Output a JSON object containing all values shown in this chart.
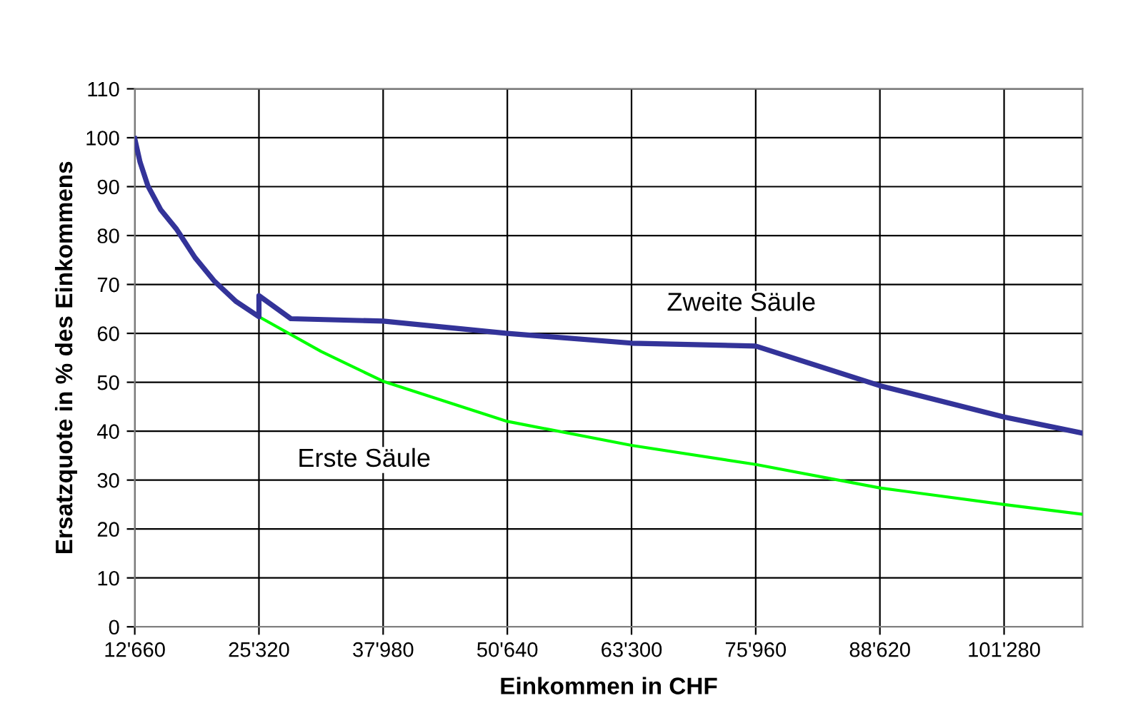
{
  "chart_data": {
    "type": "line",
    "xlabel": "Einkommen in CHF",
    "ylabel": "Ersatzquote in % des Einkommens",
    "xlim": [
      12660,
      109280
    ],
    "ylim": [
      0,
      110
    ],
    "xticks": [
      {
        "value": 12660,
        "label": "12'660"
      },
      {
        "value": 25320,
        "label": "25'320"
      },
      {
        "value": 37980,
        "label": "37'980"
      },
      {
        "value": 50640,
        "label": "50'640"
      },
      {
        "value": 63300,
        "label": "63'300"
      },
      {
        "value": 75960,
        "label": "75'960"
      },
      {
        "value": 88620,
        "label": "88'620"
      },
      {
        "value": 101280,
        "label": "101'280"
      }
    ],
    "yticks": [
      0,
      10,
      20,
      30,
      40,
      50,
      60,
      70,
      80,
      90,
      100,
      110
    ],
    "grid": true,
    "legend": false,
    "marker": "none",
    "line_style": "solid",
    "series": [
      {
        "name": "Zweite Säule",
        "color": "#333399",
        "x": [
          12660,
          13200,
          14010,
          15300,
          16920,
          18800,
          20810,
          23000,
          25320,
          25320,
          28570,
          37980,
          50640,
          63300,
          75960,
          88620,
          101280,
          109280
        ],
        "values": [
          99.8,
          95,
          90.1,
          85.3,
          81.3,
          75.5,
          70.6,
          66.5,
          63.4,
          67.7,
          63,
          62.5,
          60,
          58,
          57.4,
          49.3,
          42.9,
          39.6
        ]
      },
      {
        "name": "Erste Säule",
        "color": "#00ff00",
        "x": [
          25320,
          31650,
          37980,
          50640,
          63300,
          75960,
          88620,
          101280,
          109280
        ],
        "values": [
          63.4,
          56.3,
          50.2,
          42,
          37.1,
          33.2,
          28.4,
          25,
          23
        ]
      }
    ]
  }
}
